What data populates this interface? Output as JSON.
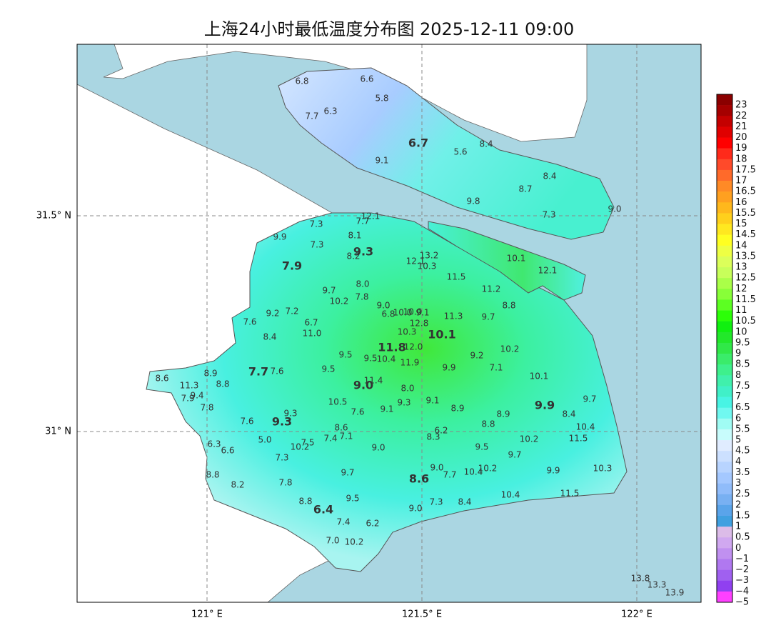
{
  "title": "上海24小时最低温度分布图 2025-12-11 09:00",
  "axes": {
    "lat_labels": [
      "31.5° N",
      "31° N"
    ],
    "lon_labels": [
      "121° E",
      "121.5° E",
      "122° E"
    ]
  },
  "colorbar": {
    "labels": [
      "23",
      "22",
      "21",
      "20",
      "19",
      "18",
      "17.5",
      "17",
      "16.5",
      "16",
      "15.5",
      "15",
      "14.5",
      "14",
      "13.5",
      "13",
      "12.5",
      "12",
      "11.5",
      "11",
      "10.5",
      "10",
      "9.5",
      "9",
      "8.5",
      "8",
      "7.5",
      "7",
      "6.5",
      "6",
      "5.5",
      "5",
      "4.5",
      "4",
      "3.5",
      "3",
      "2.5",
      "2",
      "1.5",
      "1",
      "0.5",
      "0",
      "−1",
      "−2",
      "−3",
      "−4",
      "−5"
    ],
    "colors": [
      "#8b0000",
      "#a50000",
      "#c40000",
      "#e00000",
      "#ff0000",
      "#ff2a1a",
      "#ff4a2a",
      "#ff6a2a",
      "#ff8a26",
      "#ffa020",
      "#ffb81c",
      "#ffd01c",
      "#ffe820",
      "#ffff22",
      "#eeff44",
      "#dcff5a",
      "#c8ff5a",
      "#aaff48",
      "#88ff38",
      "#5cff22",
      "#2cff08",
      "#10f010",
      "#22e82a",
      "#30e848",
      "#3aec6a",
      "#3ef08c",
      "#40f0ac",
      "#40f0c8",
      "#48f4e4",
      "#70f8f0",
      "#a0fcf4",
      "#c8fcfc",
      "#e0ecff",
      "#cce0ff",
      "#b8d4ff",
      "#a4c8ff",
      "#90bcfa",
      "#78b0f2",
      "#5aa4ea",
      "#40a0e0",
      "#dcbce8",
      "#d0a8f0",
      "#c090f0",
      "#b078f0",
      "#a060f0",
      "#9040f0",
      "#ff40ff"
    ]
  },
  "stations": [
    "6.8",
    "6.6",
    "5.8",
    "6.3",
    "7.7",
    "5.6",
    "8.4",
    "9.1",
    "8.4",
    "8.7",
    "9.8",
    "7.3",
    "9.0",
    "10.1",
    "12.1",
    "12.1",
    "7.7",
    "7.3",
    "8.1",
    "9.9",
    "7.3",
    "8.2",
    "12.1",
    "13.2",
    "10.3",
    "11.5",
    "8.0",
    "9.7",
    "11.2",
    "7.8",
    "10.2",
    "8.8",
    "9.0",
    "6.8",
    "10.0",
    "10.0",
    "9.1",
    "11.3",
    "9.7",
    "9.2",
    "7.2",
    "7.6",
    "6.7",
    "12.8",
    "10.3",
    "11.0",
    "8.4",
    "12.0",
    "9.5",
    "9.5",
    "10.4",
    "9.2",
    "10.2",
    "11.9",
    "7.1",
    "9.9",
    "9.5",
    "7.6",
    "8.6",
    "8.9",
    "11.3",
    "8.8",
    "10.1",
    "11.4",
    "8.0",
    "7.9",
    "9.4",
    "9.7",
    "10.5",
    "9.3",
    "9.1",
    "9.1",
    "7.8",
    "7.6",
    "8.9",
    "8.9",
    "8.4",
    "9.3",
    "7.6",
    "8.8",
    "10.4",
    "8.6",
    "6.2",
    "8.3",
    "5.0",
    "7.4",
    "7.1",
    "10.2",
    "11.5",
    "7.5",
    "10.2",
    "6.3",
    "6.6",
    "9.0",
    "9.5",
    "9.7",
    "7.3",
    "9.0",
    "10.2",
    "7.7",
    "10.4",
    "9.9",
    "10.3",
    "9.7",
    "8.8",
    "7.8",
    "8.2",
    "11.5",
    "10.4",
    "9.5",
    "8.8",
    "7.3",
    "8.4",
    "9.0",
    "7.4",
    "6.2",
    "7.0",
    "10.2",
    "13.8",
    "13.3",
    "13.9"
  ],
  "districts": [
    "6.7",
    "9.3",
    "7.9",
    "10.1",
    "11.8",
    "7.7",
    "9.0",
    "9.9",
    "9.3",
    "8.6",
    "6.4"
  ]
}
